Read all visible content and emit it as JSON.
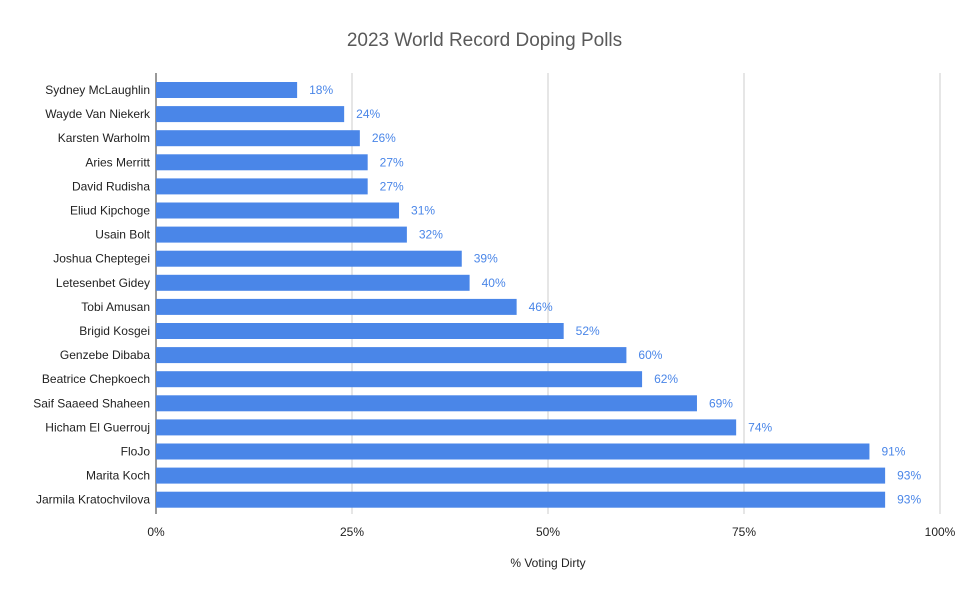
{
  "chart_data": {
    "type": "bar",
    "orientation": "horizontal",
    "title": "2023 World Record Doping Polls",
    "xlabel": "% Voting Dirty",
    "ylabel": "",
    "xlim": [
      0,
      100
    ],
    "x_ticks": [
      "0%",
      "25%",
      "50%",
      "75%",
      "100%"
    ],
    "x_tick_values": [
      0,
      25,
      50,
      75,
      100
    ],
    "grid": true,
    "legend": "none",
    "bar_color": "#4a86e8",
    "categories": [
      "Sydney McLaughlin",
      "Wayde Van Niekerk",
      "Karsten Warholm",
      "Aries Merritt",
      "David Rudisha",
      "Eliud Kipchoge",
      "Usain Bolt",
      "Joshua Cheptegei",
      "Letesenbet Gidey",
      "Tobi Amusan",
      "Brigid Kosgei",
      "Genzebe Dibaba",
      "Beatrice Chepkoech",
      "Saif Saaeed Shaheen",
      "Hicham El Guerrouj",
      "FloJo",
      "Marita Koch",
      "Jarmila Kratochvilova"
    ],
    "values": [
      18,
      24,
      26,
      27,
      27,
      31,
      32,
      39,
      40,
      46,
      52,
      60,
      62,
      69,
      74,
      91,
      93,
      93
    ],
    "data_labels": [
      "18%",
      "24%",
      "26%",
      "27%",
      "27%",
      "31%",
      "32%",
      "39%",
      "40%",
      "46%",
      "52%",
      "60%",
      "62%",
      "69%",
      "74%",
      "91%",
      "93%",
      "93%"
    ]
  }
}
